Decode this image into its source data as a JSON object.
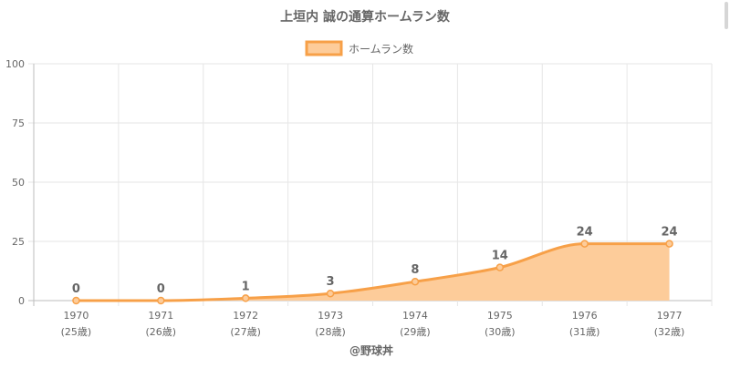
{
  "chart_data": {
    "type": "area",
    "title": "上垣内 誠の通算ホームラン数",
    "legend": {
      "label": "ホームラン数",
      "placement": "top-center"
    },
    "categories": [
      [
        "1970",
        "(25歳)"
      ],
      [
        "1971",
        "(26歳)"
      ],
      [
        "1972",
        "(27歳)"
      ],
      [
        "1973",
        "(28歳)"
      ],
      [
        "1974",
        "(29歳)"
      ],
      [
        "1975",
        "(30歳)"
      ],
      [
        "1976",
        "(31歳)"
      ],
      [
        "1977",
        "(32歳)"
      ]
    ],
    "series": [
      {
        "name": "ホームラン数",
        "values": [
          0,
          0,
          1,
          3,
          8,
          14,
          24,
          24
        ]
      }
    ],
    "data_labels": [
      "0",
      "0",
      "1",
      "3",
      "8",
      "14",
      "24",
      "24"
    ],
    "ylim": [
      0,
      100
    ],
    "yticks": [
      0,
      25,
      50,
      75,
      100
    ],
    "grid": true,
    "credit": "@野球丼",
    "colors": {
      "line": "#f7a048",
      "fill": "#fdcc9a",
      "point": "#f7a048"
    }
  }
}
